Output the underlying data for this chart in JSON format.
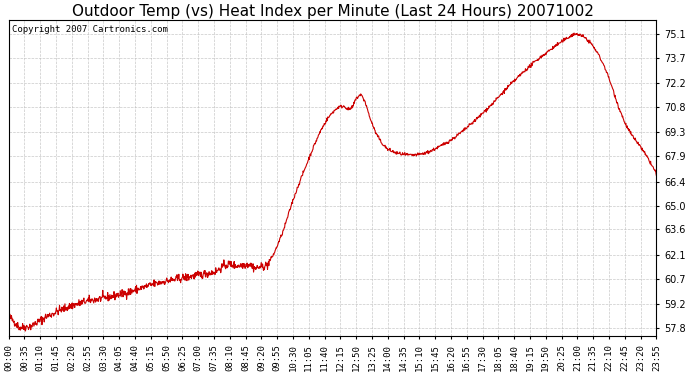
{
  "title": "Outdoor Temp (vs) Heat Index per Minute (Last 24 Hours) 20071002",
  "copyright": "Copyright 2007 Cartronics.com",
  "line_color": "#cc0000",
  "background_color": "#ffffff",
  "grid_color": "#bbbbbb",
  "yticks": [
    57.8,
    59.2,
    60.7,
    62.1,
    63.6,
    65.0,
    66.4,
    67.9,
    69.3,
    70.8,
    72.2,
    73.7,
    75.1
  ],
  "ylim": [
    57.3,
    75.9
  ],
  "xtick_labels": [
    "00:00",
    "00:35",
    "01:10",
    "01:45",
    "02:20",
    "02:55",
    "03:30",
    "04:05",
    "04:40",
    "05:15",
    "05:50",
    "06:25",
    "07:00",
    "07:35",
    "08:10",
    "08:45",
    "09:20",
    "09:55",
    "10:30",
    "11:05",
    "11:40",
    "12:15",
    "12:50",
    "13:25",
    "14:00",
    "14:35",
    "15:10",
    "15:45",
    "16:20",
    "16:55",
    "17:30",
    "18:05",
    "18:40",
    "19:15",
    "19:50",
    "20:25",
    "21:00",
    "21:35",
    "22:10",
    "22:45",
    "23:20",
    "23:55"
  ],
  "title_fontsize": 11,
  "tick_fontsize": 6.5,
  "copyright_fontsize": 6.5,
  "keypoints": [
    [
      0,
      58.5
    ],
    [
      25,
      57.8
    ],
    [
      50,
      57.9
    ],
    [
      80,
      58.4
    ],
    [
      110,
      58.8
    ],
    [
      140,
      59.1
    ],
    [
      170,
      59.35
    ],
    [
      200,
      59.5
    ],
    [
      230,
      59.65
    ],
    [
      260,
      59.85
    ],
    [
      290,
      60.1
    ],
    [
      320,
      60.35
    ],
    [
      350,
      60.55
    ],
    [
      380,
      60.7
    ],
    [
      410,
      60.85
    ],
    [
      440,
      61.0
    ],
    [
      460,
      61.1
    ],
    [
      475,
      61.4
    ],
    [
      490,
      61.55
    ],
    [
      505,
      61.45
    ],
    [
      520,
      61.5
    ],
    [
      535,
      61.55
    ],
    [
      548,
      61.3
    ],
    [
      562,
      61.4
    ],
    [
      575,
      61.5
    ],
    [
      590,
      62.2
    ],
    [
      610,
      63.5
    ],
    [
      630,
      65.2
    ],
    [
      648,
      66.5
    ],
    [
      663,
      67.5
    ],
    [
      678,
      68.5
    ],
    [
      693,
      69.4
    ],
    [
      708,
      70.1
    ],
    [
      720,
      70.5
    ],
    [
      733,
      70.8
    ],
    [
      745,
      70.85
    ],
    [
      755,
      70.65
    ],
    [
      763,
      70.75
    ],
    [
      772,
      71.3
    ],
    [
      782,
      71.55
    ],
    [
      792,
      71.1
    ],
    [
      802,
      70.2
    ],
    [
      815,
      69.3
    ],
    [
      828,
      68.7
    ],
    [
      842,
      68.3
    ],
    [
      860,
      68.1
    ],
    [
      878,
      68.0
    ],
    [
      895,
      67.95
    ],
    [
      912,
      68.0
    ],
    [
      928,
      68.1
    ],
    [
      945,
      68.3
    ],
    [
      963,
      68.55
    ],
    [
      985,
      68.9
    ],
    [
      1010,
      69.4
    ],
    [
      1040,
      70.1
    ],
    [
      1075,
      71.0
    ],
    [
      1110,
      72.0
    ],
    [
      1145,
      72.9
    ],
    [
      1175,
      73.6
    ],
    [
      1200,
      74.1
    ],
    [
      1220,
      74.5
    ],
    [
      1238,
      74.8
    ],
    [
      1252,
      75.05
    ],
    [
      1263,
      75.1
    ],
    [
      1272,
      75.0
    ],
    [
      1282,
      74.85
    ],
    [
      1295,
      74.5
    ],
    [
      1310,
      73.9
    ],
    [
      1325,
      73.1
    ],
    [
      1340,
      72.0
    ],
    [
      1355,
      70.8
    ],
    [
      1370,
      69.8
    ],
    [
      1385,
      69.1
    ],
    [
      1400,
      68.6
    ],
    [
      1412,
      68.1
    ],
    [
      1422,
      67.7
    ],
    [
      1430,
      67.3
    ],
    [
      1437,
      67.0
    ],
    [
      1439,
      66.7
    ]
  ]
}
